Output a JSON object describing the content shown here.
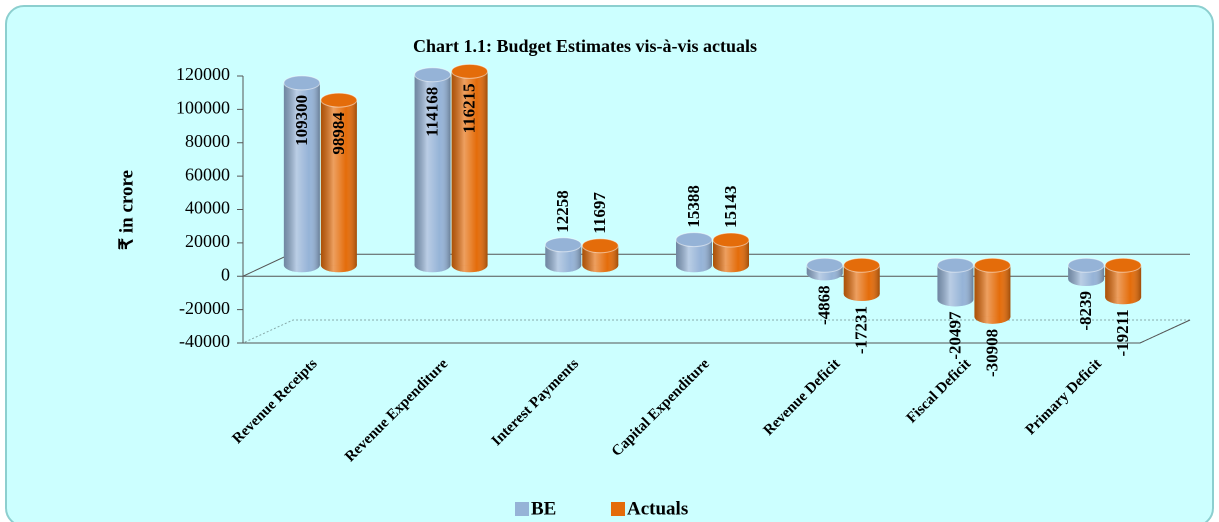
{
  "chart_data": {
    "type": "bar",
    "title": "Chart 1.1: Budget Estimates vis-à-vis actuals",
    "ylabel": "₹ in crore",
    "categories": [
      "Revenue Receipts",
      "Revenue Expenditure",
      "Interest Payments",
      "Capital Expenditure",
      "Revenue Deficit",
      "Fiscal Deficit",
      "Primary Deficit"
    ],
    "series": [
      {
        "name": "BE",
        "color": "#95b3d7",
        "values": [
          109300,
          114168,
          12258,
          15388,
          -4868,
          -20497,
          -8239
        ]
      },
      {
        "name": "Actuals",
        "color": "#e46c0a",
        "values": [
          98984,
          116215,
          11697,
          15143,
          -17231,
          -30908,
          -19211
        ]
      }
    ],
    "ylim": [
      -40000,
      120000
    ],
    "yticks": [
      -40000,
      -20000,
      0,
      20000,
      40000,
      60000,
      80000,
      100000,
      120000
    ],
    "grid": true
  }
}
